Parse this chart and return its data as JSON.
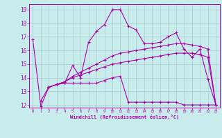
{
  "xlabel": "Windchill (Refroidissement éolien,°C)",
  "bg_color": "#c8ecec",
  "line_color": "#aa00aa",
  "grid_color": "#aacccc",
  "xlim": [
    -0.5,
    23.5
  ],
  "ylim": [
    11.8,
    19.4
  ],
  "xticks": [
    0,
    1,
    2,
    3,
    4,
    5,
    6,
    7,
    8,
    9,
    10,
    11,
    12,
    13,
    14,
    15,
    16,
    17,
    18,
    19,
    20,
    21,
    22,
    23
  ],
  "yticks": [
    12,
    13,
    14,
    15,
    16,
    17,
    18,
    19
  ],
  "line1_x": [
    0,
    1,
    2,
    3,
    4,
    5,
    6,
    7,
    8,
    9,
    10,
    11,
    12,
    13,
    14,
    15,
    16,
    17,
    18,
    19,
    20,
    21,
    22,
    23
  ],
  "line1_y": [
    16.8,
    11.9,
    13.3,
    13.5,
    13.6,
    14.9,
    14.0,
    16.6,
    17.4,
    17.9,
    19.0,
    19.0,
    17.8,
    17.5,
    16.5,
    16.5,
    16.6,
    17.0,
    17.3,
    16.1,
    15.5,
    16.1,
    13.9,
    12.0
  ],
  "line2_x": [
    1,
    2,
    3,
    4,
    5,
    6,
    7,
    8,
    9,
    10,
    11,
    12,
    13,
    14,
    15,
    16,
    17,
    18,
    19,
    20,
    21,
    22,
    23
  ],
  "line2_y": [
    12.3,
    13.3,
    13.5,
    13.6,
    13.6,
    13.6,
    13.6,
    13.6,
    13.8,
    14.0,
    14.1,
    12.2,
    12.2,
    12.2,
    12.2,
    12.2,
    12.2,
    12.2,
    12.0,
    12.0,
    12.0,
    12.0,
    12.0
  ],
  "line3_x": [
    2,
    3,
    4,
    5,
    6,
    7,
    8,
    9,
    10,
    11,
    12,
    13,
    14,
    15,
    16,
    17,
    18,
    19,
    20,
    21,
    22,
    23
  ],
  "line3_y": [
    13.3,
    13.5,
    13.7,
    14.0,
    14.2,
    14.4,
    14.6,
    14.8,
    15.0,
    15.1,
    15.2,
    15.3,
    15.4,
    15.5,
    15.6,
    15.7,
    15.8,
    15.8,
    15.8,
    15.7,
    15.5,
    12.0
  ],
  "line4_x": [
    2,
    3,
    4,
    5,
    6,
    7,
    8,
    9,
    10,
    11,
    12,
    13,
    14,
    15,
    16,
    17,
    18,
    19,
    20,
    21,
    22,
    23
  ],
  "line4_y": [
    13.3,
    13.5,
    13.7,
    14.1,
    14.4,
    14.7,
    15.0,
    15.3,
    15.6,
    15.8,
    15.9,
    16.0,
    16.1,
    16.2,
    16.3,
    16.4,
    16.5,
    16.5,
    16.4,
    16.3,
    16.1,
    12.0
  ]
}
